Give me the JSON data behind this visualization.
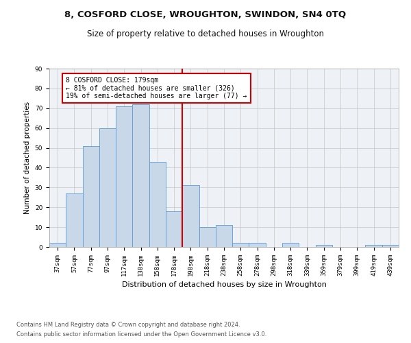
{
  "title1": "8, COSFORD CLOSE, WROUGHTON, SWINDON, SN4 0TQ",
  "title2": "Size of property relative to detached houses in Wroughton",
  "xlabel": "Distribution of detached houses by size in Wroughton",
  "ylabel": "Number of detached properties",
  "categories": [
    "37sqm",
    "57sqm",
    "77sqm",
    "97sqm",
    "117sqm",
    "138sqm",
    "158sqm",
    "178sqm",
    "198sqm",
    "218sqm",
    "238sqm",
    "258sqm",
    "278sqm",
    "298sqm",
    "318sqm",
    "339sqm",
    "359sqm",
    "379sqm",
    "399sqm",
    "419sqm",
    "439sqm"
  ],
  "values": [
    2,
    27,
    51,
    60,
    71,
    72,
    43,
    18,
    31,
    10,
    11,
    2,
    2,
    0,
    2,
    0,
    1,
    0,
    0,
    1,
    1
  ],
  "bar_color": "#c8d8e8",
  "bar_edge_color": "#5b9bd5",
  "vline_x": 7.5,
  "vline_color": "#cc0000",
  "annotation_line1": "8 COSFORD CLOSE: 179sqm",
  "annotation_line2": "← 81% of detached houses are smaller (326)",
  "annotation_line3": "19% of semi-detached houses are larger (77) →",
  "annotation_box_color": "#ffffff",
  "annotation_box_edge_color": "#cc0000",
  "ylim": [
    0,
    90
  ],
  "yticks": [
    0,
    10,
    20,
    30,
    40,
    50,
    60,
    70,
    80,
    90
  ],
  "grid_color": "#cccccc",
  "background_color": "#eef2f7",
  "footer1": "Contains HM Land Registry data © Crown copyright and database right 2024.",
  "footer2": "Contains public sector information licensed under the Open Government Licence v3.0.",
  "title1_fontsize": 9.5,
  "title2_fontsize": 8.5,
  "xlabel_fontsize": 8,
  "ylabel_fontsize": 7.5,
  "tick_fontsize": 6.5,
  "annotation_fontsize": 7,
  "footer_fontsize": 6
}
